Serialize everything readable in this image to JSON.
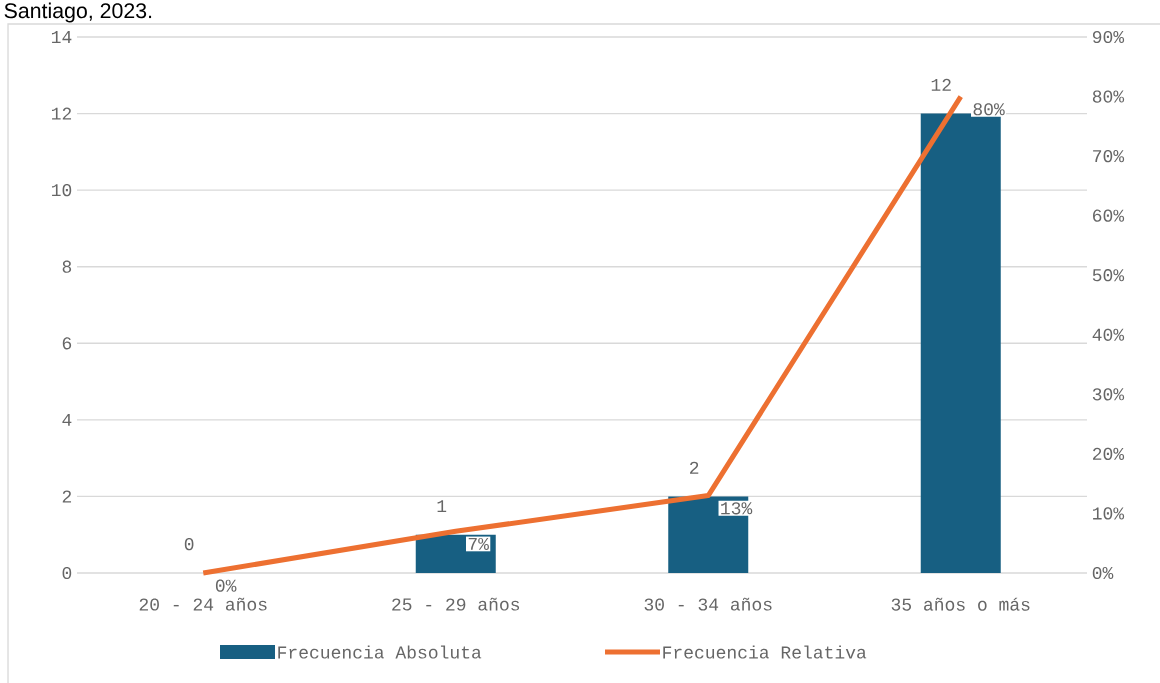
{
  "chart_data": {
    "type": "bar",
    "title": "Santiago, 2023.",
    "categories": [
      "20 - 24 años",
      "25 - 29 años",
      "30 - 34 años",
      "35 años o más"
    ],
    "series": [
      {
        "name": "Frecuencia Absoluta",
        "color": "#175f82",
        "values": [
          0,
          1,
          2,
          12
        ]
      },
      {
        "name": "Frecuencia Relativa",
        "type": "line",
        "axis": "y2",
        "color": "#ed7031",
        "values": [
          0,
          7,
          13,
          80
        ],
        "value_labels": [
          "0%",
          "7%",
          "13%",
          "80%"
        ]
      }
    ],
    "ylim": [
      0,
      14
    ],
    "yticks": [
      0,
      2,
      4,
      6,
      8,
      10,
      12,
      14
    ],
    "y2lim": [
      0,
      90
    ],
    "y2ticks": [
      {
        "value": 0,
        "label": "0%"
      },
      {
        "value": 10,
        "label": "10%"
      },
      {
        "value": 20,
        "label": "20%"
      },
      {
        "value": 30,
        "label": "30%"
      },
      {
        "value": 40,
        "label": "40%"
      },
      {
        "value": 50,
        "label": "50%"
      },
      {
        "value": 60,
        "label": "60%"
      },
      {
        "value": 70,
        "label": "70%"
      },
      {
        "value": 80,
        "label": "80%"
      },
      {
        "value": 90,
        "label": "90%"
      }
    ],
    "grid": "y",
    "legend": "bottom",
    "data_labels": true,
    "marker": "none",
    "line_style": "solid"
  }
}
